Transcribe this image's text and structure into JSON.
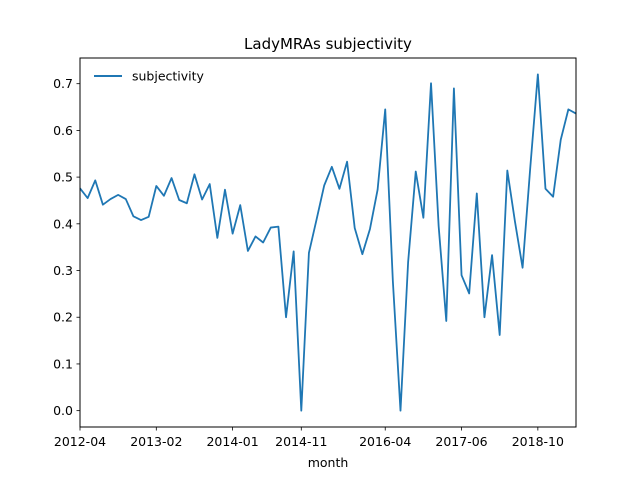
{
  "chart_data": {
    "type": "line",
    "title": "LadyMRAs subjectivity",
    "xlabel": "month",
    "ylabel": "",
    "x_tick_labels": [
      "2012-04",
      "2013-02",
      "2014-01",
      "2014-11",
      "2016-04",
      "2017-06",
      "2018-10"
    ],
    "x_tick_index": [
      0,
      10,
      20,
      29,
      40,
      50,
      60
    ],
    "ylim": [
      -0.035,
      0.755
    ],
    "y_ticks": [
      0.0,
      0.1,
      0.2,
      0.3,
      0.4,
      0.5,
      0.6,
      0.7
    ],
    "y_tick_labels": [
      "0.0",
      "0.1",
      "0.2",
      "0.3",
      "0.4",
      "0.5",
      "0.6",
      "0.7"
    ],
    "grid": false,
    "legend_position": "top-left",
    "series": [
      {
        "name": "subjectivity",
        "color": "#1f77b4",
        "values": [
          0.476,
          0.455,
          0.493,
          0.441,
          0.453,
          0.462,
          0.453,
          0.416,
          0.408,
          0.415,
          0.481,
          0.46,
          0.498,
          0.451,
          0.444,
          0.506,
          0.452,
          0.485,
          0.37,
          0.473,
          0.379,
          0.44,
          0.342,
          0.373,
          0.36,
          0.392,
          0.394,
          0.2,
          0.341,
          0.0,
          0.338,
          0.409,
          0.482,
          0.522,
          0.475,
          0.533,
          0.391,
          0.335,
          0.389,
          0.473,
          0.645,
          0.277,
          0.0,
          0.318,
          0.512,
          0.413,
          0.701,
          0.395,
          0.192,
          0.69,
          0.29,
          0.251,
          0.465,
          0.2,
          0.333,
          0.162,
          0.514,
          0.405,
          0.306,
          0.519,
          0.72,
          0.475,
          0.458,
          0.58,
          0.645,
          0.636
        ]
      }
    ]
  }
}
